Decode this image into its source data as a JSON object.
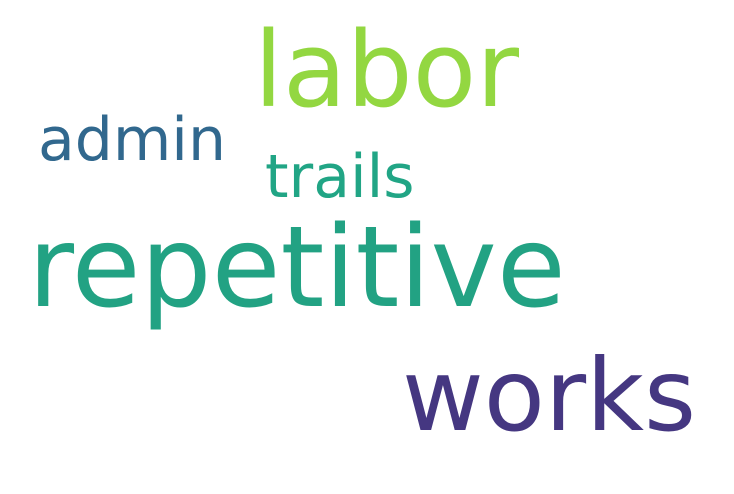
{
  "words": [
    {
      "text": "repetitive",
      "color": "#22a283"
    },
    {
      "text": "labor",
      "color": "#93d741"
    },
    {
      "text": "works",
      "color": "#453781"
    },
    {
      "text": "admin",
      "color": "#31688e"
    },
    {
      "text": "trails",
      "color": "#21a585"
    }
  ]
}
